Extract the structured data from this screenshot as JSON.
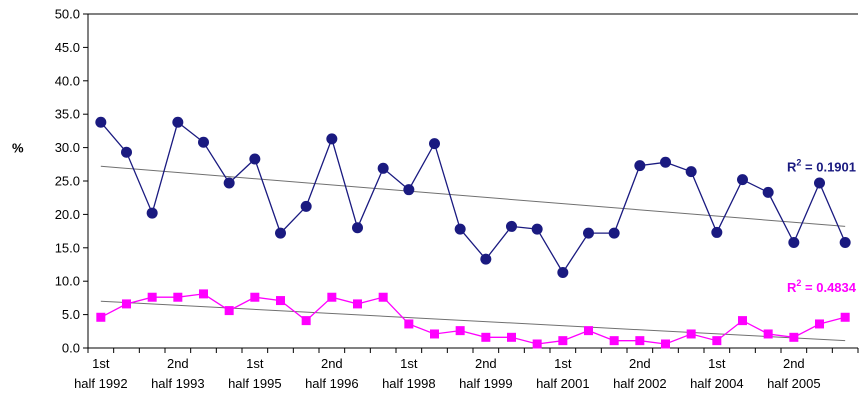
{
  "chart_data": {
    "type": "line",
    "title": "",
    "xlabel": "",
    "ylabel": "%",
    "ylim": [
      0,
      50
    ],
    "yticks": [
      "0.0",
      "5.0",
      "10.0",
      "15.0",
      "20.0",
      "25.0",
      "30.0",
      "35.0",
      "40.0",
      "45.0",
      "50.0"
    ],
    "x_tick_labels": [
      {
        "line1": "1st",
        "line2": "half 1992"
      },
      {
        "line1": "2nd",
        "line2": "half 1993"
      },
      {
        "line1": "1st",
        "line2": "half 1995"
      },
      {
        "line1": "2nd",
        "line2": "half 1996"
      },
      {
        "line1": "1st",
        "line2": "half 1998"
      },
      {
        "line1": "2nd",
        "line2": "half 1999"
      },
      {
        "line1": "1st",
        "line2": "half 2001"
      },
      {
        "line1": "2nd",
        "line2": "half 2002"
      },
      {
        "line1": "1st",
        "line2": "half 2004"
      },
      {
        "line1": "2nd",
        "line2": "half 2005"
      }
    ],
    "grid": false,
    "series": [
      {
        "color": "#1a1a80",
        "marker": "circle",
        "values": [
          33.8,
          29.3,
          20.2,
          33.8,
          30.8,
          24.7,
          28.3,
          17.2,
          21.2,
          31.3,
          18.0,
          26.9,
          23.7,
          30.6,
          17.8,
          13.3,
          18.2,
          17.8,
          11.3,
          17.2,
          17.2,
          27.3,
          27.8,
          26.4,
          17.3,
          25.2,
          23.3,
          15.8,
          24.7,
          15.8
        ],
        "trendline": {
          "start": 27.2,
          "end": 18.2
        },
        "r2": "R² = 0.1901",
        "r2_label": {
          "main": "R",
          "sup": "2",
          "rest": " = 0.1901"
        }
      },
      {
        "color": "#ff00ff",
        "marker": "square",
        "values": [
          4.6,
          6.6,
          7.6,
          7.6,
          8.1,
          5.6,
          7.6,
          7.1,
          4.1,
          7.6,
          6.6,
          7.6,
          3.6,
          2.1,
          2.6,
          1.6,
          1.6,
          0.6,
          1.1,
          2.6,
          1.1,
          1.1,
          0.6,
          2.1,
          1.1,
          4.1,
          2.1,
          1.6,
          3.6,
          4.6
        ],
        "trendline": {
          "start": 7.0,
          "end": 1.1
        },
        "r2": "R² = 0.4834",
        "r2_label": {
          "main": "R",
          "sup": "2",
          "rest": " = 0.4834"
        }
      }
    ]
  }
}
